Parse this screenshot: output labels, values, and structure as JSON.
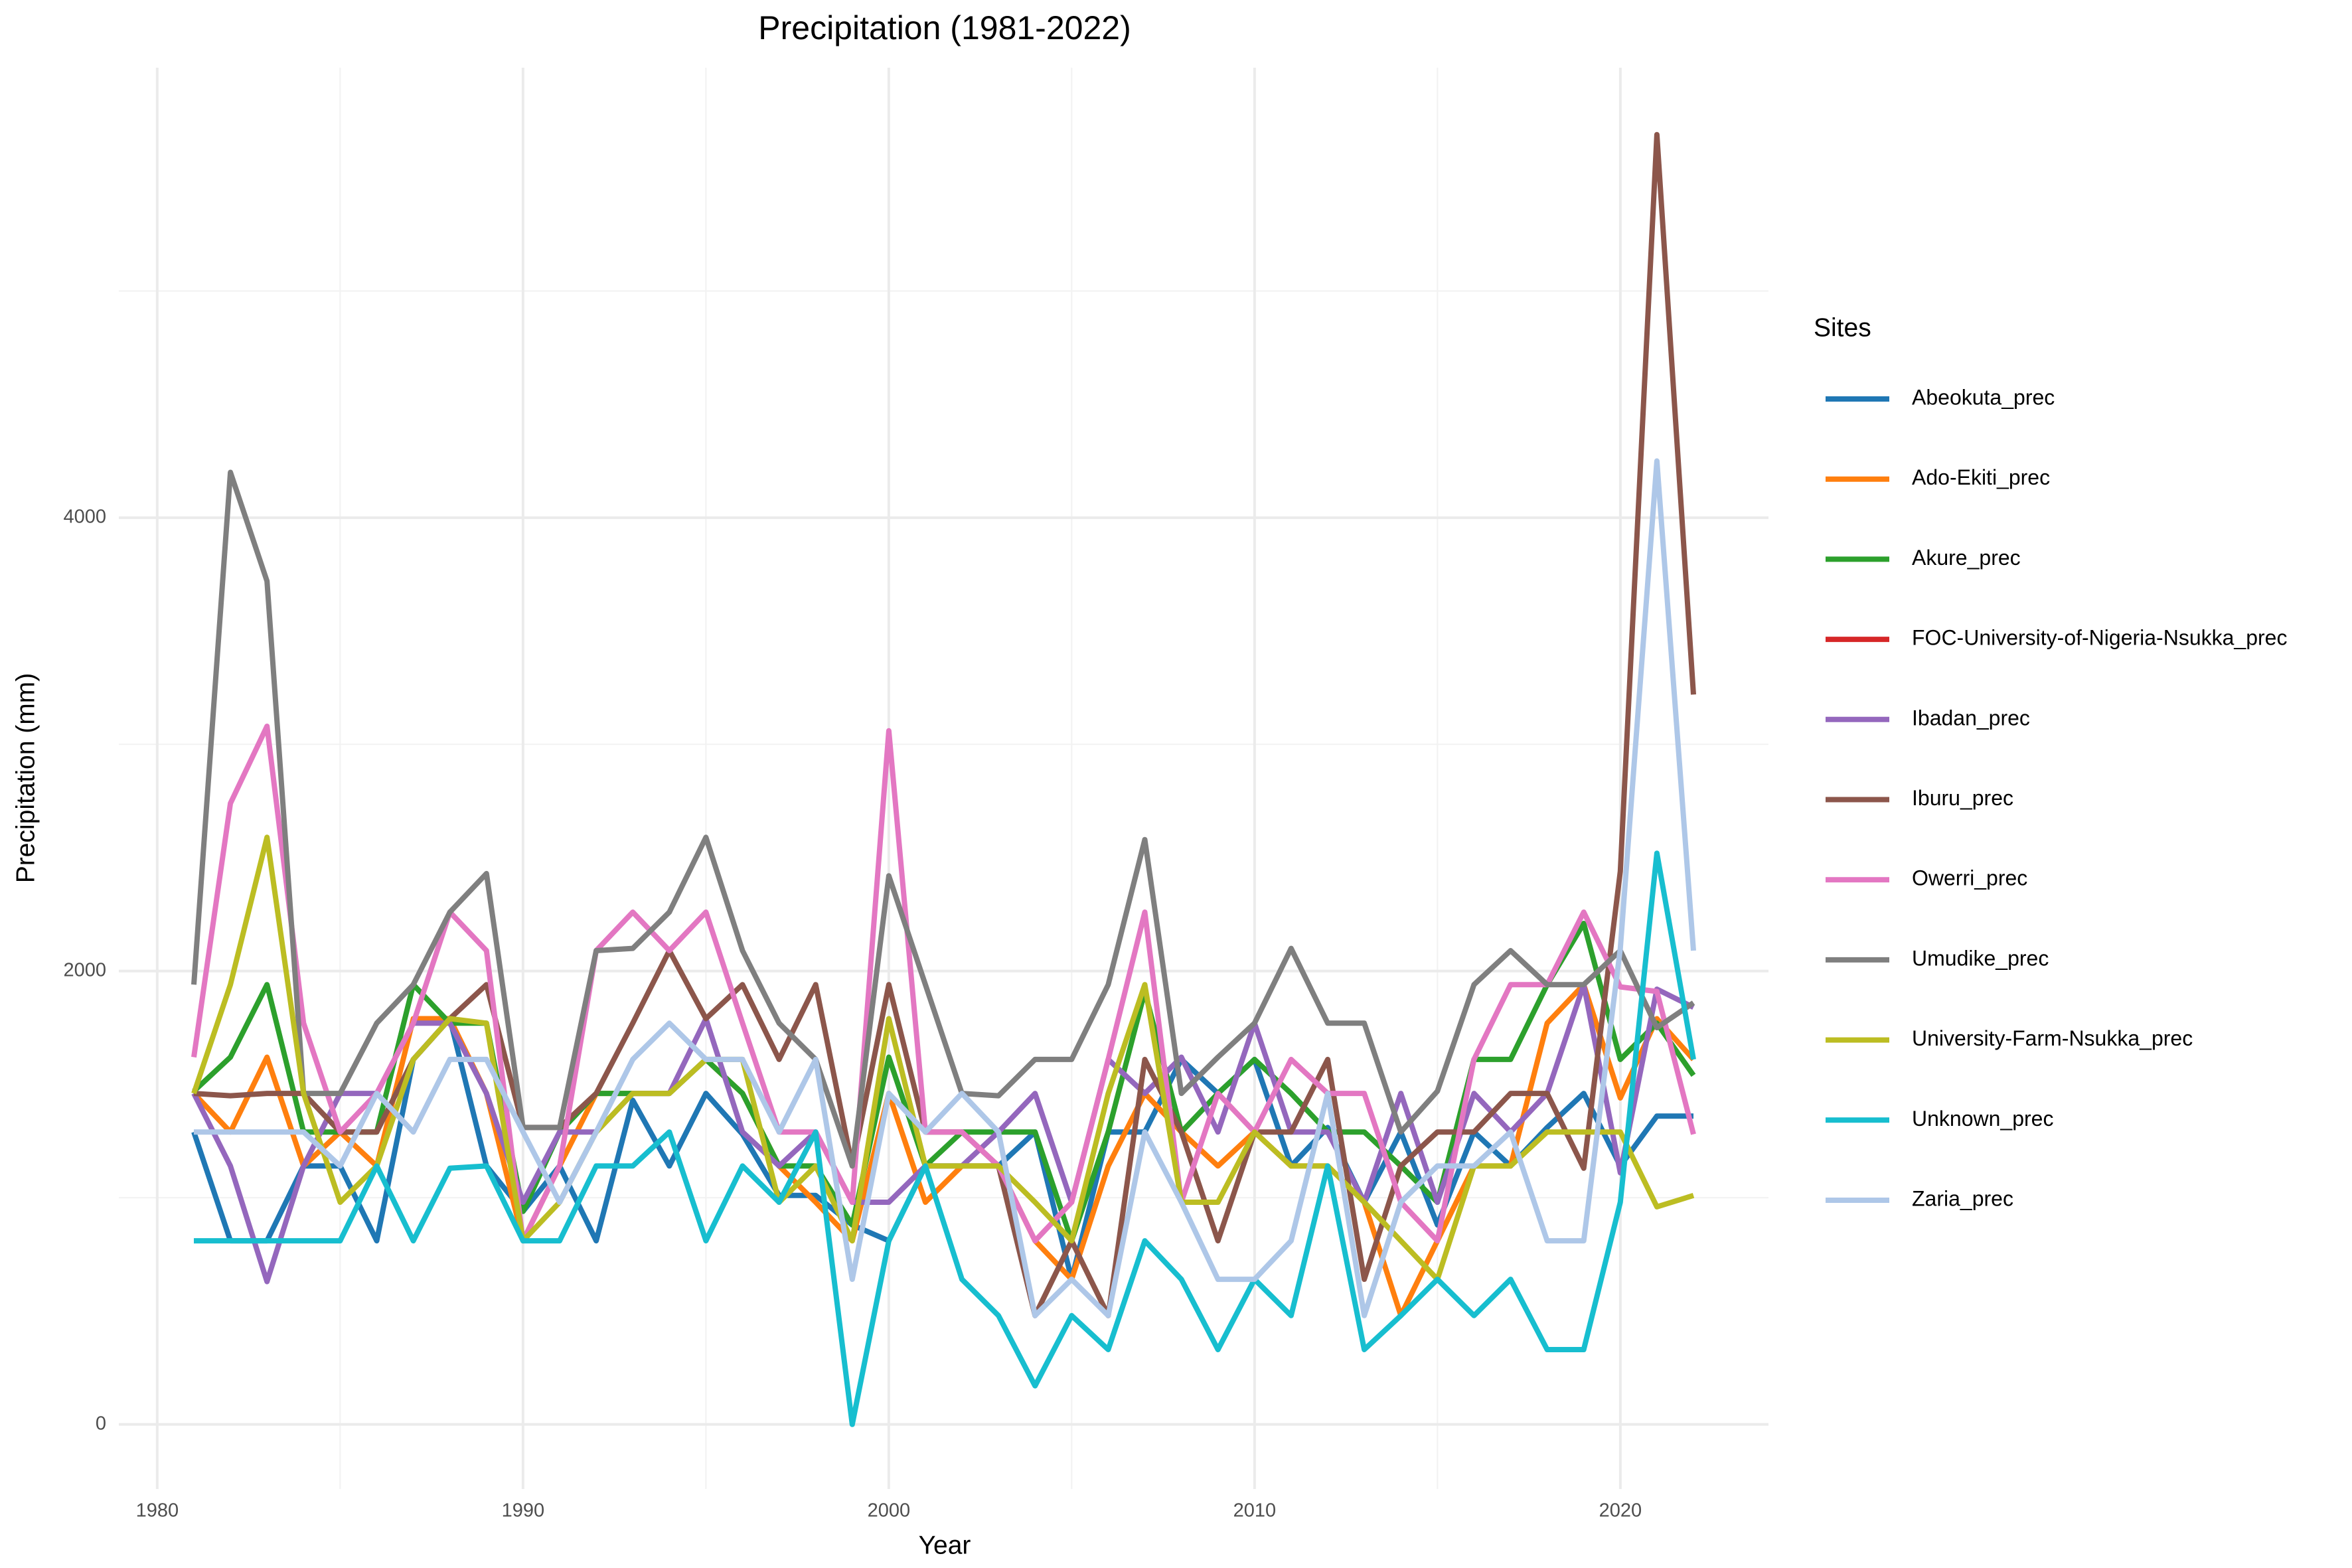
{
  "chart_data": {
    "type": "line",
    "title": "Precipitation (1981-2022)",
    "x_label": "Year",
    "y_label": "Precipitation (mm)",
    "legend_title": "Sites",
    "legend": "right",
    "grid": true,
    "xlim": [
      1978.95,
      2024.05
    ],
    "ylim": [
      -285,
      5985
    ],
    "xticks": [
      1980,
      1990,
      2000,
      2010,
      2020
    ],
    "yticks": [
      0,
      2000,
      4000
    ],
    "x_minor_ticks": [
      1985,
      1995,
      2005,
      2015
    ],
    "y_minor_ticks": [
      1000,
      3000,
      5000
    ],
    "x": [
      1981,
      1982,
      1983,
      1984,
      1985,
      1986,
      1987,
      1988,
      1989,
      1990,
      1991,
      1992,
      1993,
      1994,
      1995,
      1996,
      1997,
      1998,
      1999,
      2000,
      2001,
      2002,
      2003,
      2004,
      2005,
      2006,
      2007,
      2008,
      2009,
      2010,
      2011,
      2012,
      2013,
      2014,
      2015,
      2016,
      2017,
      2018,
      2019,
      2020,
      2021,
      2022
    ],
    "series": [
      {
        "name": "Abeokuta_prec",
        "color": "#1f77b4",
        "values": [
          1290,
          810,
          810,
          1140,
          1140,
          810,
          1610,
          1790,
          1140,
          940,
          1140,
          810,
          1430,
          1140,
          1460,
          1280,
          1010,
          1010,
          880,
          810,
          1140,
          1140,
          1140,
          1290,
          640,
          1290,
          1290,
          1610,
          1460,
          1610,
          1140,
          1310,
          980,
          1290,
          880,
          1290,
          1140,
          1310,
          1460,
          1140,
          1360,
          1360
        ]
      },
      {
        "name": "Ado-Ekiti_prec",
        "color": "#ff7f0e",
        "values": [
          1460,
          1290,
          1620,
          1140,
          1290,
          1140,
          1790,
          1790,
          1460,
          810,
          1140,
          1460,
          1460,
          1460,
          1610,
          1460,
          1140,
          980,
          810,
          1460,
          980,
          1140,
          1140,
          810,
          640,
          1140,
          1460,
          1290,
          1140,
          1290,
          1140,
          1140,
          980,
          480,
          810,
          1140,
          1140,
          1770,
          1940,
          1440,
          1790,
          1610
        ]
      },
      {
        "name": "Akure_prec",
        "color": "#2ca02c",
        "values": [
          1470,
          1620,
          1940,
          1290,
          1290,
          1290,
          1940,
          1770,
          1770,
          940,
          1290,
          1460,
          1460,
          1460,
          1610,
          1460,
          1140,
          1140,
          880,
          1620,
          1140,
          1290,
          1290,
          1290,
          810,
          1290,
          1910,
          1290,
          1460,
          1610,
          1460,
          1290,
          1290,
          1140,
          980,
          1610,
          1610,
          1940,
          2210,
          1610,
          1770,
          1540
        ]
      },
      {
        "name": "FOC-University-of-Nigeria-Nsukka_prec",
        "color": "#d62728",
        "values": [
          null,
          null,
          null,
          null,
          null,
          null,
          null,
          null,
          null,
          null,
          null,
          null,
          null,
          null,
          null,
          null,
          null,
          null,
          null,
          null,
          null,
          null,
          null,
          null,
          null,
          null,
          null,
          null,
          null,
          null,
          null,
          null,
          null,
          null,
          null,
          null,
          null,
          null,
          null,
          null,
          null,
          null
        ]
      },
      {
        "name": "Ibadan_prec",
        "color": "#9467bd",
        "values": [
          1460,
          1140,
          630,
          1140,
          1460,
          1460,
          1770,
          1770,
          1460,
          980,
          1290,
          1290,
          1460,
          1460,
          1790,
          1290,
          1140,
          1290,
          980,
          980,
          1140,
          1140,
          1290,
          1460,
          980,
          1610,
          1460,
          1620,
          1290,
          1770,
          1290,
          1290,
          980,
          1460,
          980,
          1460,
          1290,
          1460,
          1940,
          1110,
          1920,
          1840
        ]
      },
      {
        "name": "Iburu_prec",
        "color": "#8c564b",
        "values": [
          1460,
          1450,
          1460,
          1460,
          1290,
          1290,
          1610,
          1790,
          1940,
          1310,
          1310,
          1460,
          1770,
          2090,
          1790,
          1940,
          1610,
          1940,
          1140,
          1940,
          1290,
          1290,
          1140,
          480,
          810,
          480,
          1610,
          1290,
          810,
          1290,
          1290,
          1610,
          640,
          1140,
          1290,
          1290,
          1460,
          1460,
          1130,
          2440,
          5690,
          3220
        ]
      },
      {
        "name": "Owerri_prec",
        "color": "#e377c2",
        "values": [
          1620,
          2740,
          3080,
          1770,
          1290,
          1460,
          1770,
          2260,
          2090,
          810,
          1140,
          2090,
          2260,
          2090,
          2260,
          1770,
          1290,
          1290,
          980,
          3060,
          1290,
          1290,
          1140,
          810,
          980,
          1610,
          2260,
          980,
          1460,
          1290,
          1610,
          1460,
          1460,
          980,
          810,
          1610,
          1940,
          1940,
          2260,
          1930,
          1910,
          1280
        ]
      },
      {
        "name": "Umudike_prec",
        "color": "#7f7f7f",
        "values": [
          1940,
          4200,
          3720,
          1460,
          1460,
          1770,
          1940,
          2260,
          2430,
          1310,
          1310,
          2090,
          2100,
          2260,
          2590,
          2090,
          1770,
          1610,
          1140,
          2420,
          1940,
          1460,
          1450,
          1610,
          1610,
          1940,
          2580,
          1460,
          1620,
          1770,
          2100,
          1770,
          1770,
          1290,
          1470,
          1940,
          2090,
          1940,
          1940,
          2090,
          1750,
          1860
        ]
      },
      {
        "name": "University-Farm-Nsukka_prec",
        "color": "#bcbd22",
        "values": [
          1460,
          1940,
          2590,
          1460,
          980,
          1140,
          1610,
          1790,
          1770,
          810,
          980,
          1290,
          1460,
          1460,
          1610,
          1610,
          980,
          1140,
          810,
          1790,
          1140,
          1140,
          1140,
          980,
          810,
          1460,
          1940,
          980,
          980,
          1290,
          1140,
          1140,
          980,
          810,
          640,
          1140,
          1140,
          1290,
          1290,
          1290,
          960,
          1010
        ]
      },
      {
        "name": "Unknown_prec",
        "color": "#17becf",
        "values": [
          810,
          810,
          810,
          810,
          810,
          1140,
          810,
          1130,
          1140,
          810,
          810,
          1140,
          1140,
          1290,
          810,
          1140,
          980,
          1290,
          0,
          810,
          1140,
          640,
          480,
          170,
          480,
          330,
          810,
          640,
          330,
          640,
          480,
          1140,
          330,
          480,
          640,
          480,
          640,
          330,
          330,
          980,
          2520,
          1610
        ]
      },
      {
        "name": "Zaria_prec",
        "color": "#aec7e8",
        "values": [
          1290,
          1290,
          1290,
          1290,
          1140,
          1460,
          1290,
          1610,
          1610,
          1290,
          980,
          1290,
          1610,
          1770,
          1610,
          1610,
          1290,
          1610,
          640,
          1460,
          1290,
          1460,
          1290,
          480,
          640,
          480,
          1290,
          980,
          640,
          640,
          810,
          1460,
          480,
          980,
          1140,
          1140,
          1290,
          810,
          810,
          2100,
          4250,
          2090
        ]
      }
    ]
  }
}
